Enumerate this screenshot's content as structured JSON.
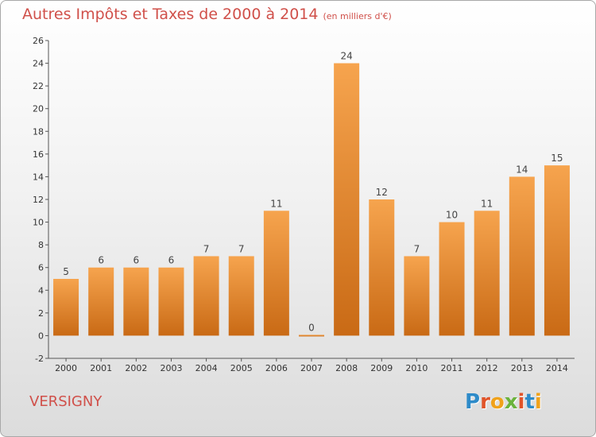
{
  "header": {
    "title": "Autres Impôts et Taxes de 2000 à 2014",
    "subtitle": "(en milliers d'€)"
  },
  "footer": {
    "commune": "VERSIGNY",
    "logo_text": "Proxiti"
  },
  "colors": {
    "title": "#d0504a",
    "bar_light": "#f6a44e",
    "bar_dark": "#c96a15",
    "logo": [
      "#2e8bc9",
      "#e0542a",
      "#f0a21b",
      "#6bb33c",
      "#e0542a",
      "#2e8bc9",
      "#f0a21b"
    ]
  },
  "chart_data": {
    "type": "bar",
    "categories": [
      "2000",
      "2001",
      "2002",
      "2003",
      "2004",
      "2005",
      "2006",
      "2007",
      "2008",
      "2009",
      "2010",
      "2011",
      "2012",
      "2013",
      "2014"
    ],
    "values": [
      5,
      6,
      6,
      6,
      7,
      7,
      11,
      0,
      24,
      12,
      7,
      10,
      11,
      14,
      15
    ],
    "data_labels": [
      "5",
      "6",
      "6",
      "6",
      "7",
      "7",
      "11",
      "0",
      "24",
      "12",
      "7",
      "10",
      "11",
      "14",
      "15"
    ],
    "title": "Autres Impôts et Taxes de 2000 à 2014",
    "subtitle": "(en milliers d'€)",
    "xlabel": "",
    "ylabel": "",
    "ylim": [
      -2,
      26
    ],
    "yticks": [
      -2,
      0,
      2,
      4,
      6,
      8,
      10,
      12,
      14,
      16,
      18,
      20,
      22,
      24,
      26
    ],
    "grid": false,
    "legend": "none"
  }
}
